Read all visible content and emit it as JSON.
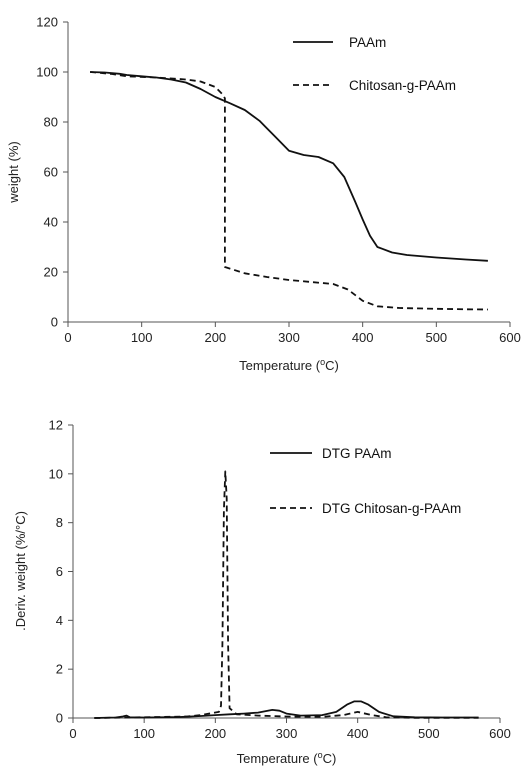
{
  "chart_data": [
    {
      "type": "line",
      "xlabel_main": "Temperature (",
      "xlabel_sup": "o",
      "xlabel_end": "C)",
      "ylabel": "weight (%)",
      "xlim": [
        0,
        600
      ],
      "ylim": [
        0,
        120
      ],
      "x_ticks": [
        "0",
        "100",
        "200",
        "300",
        "400",
        "500",
        "600"
      ],
      "y_ticks": [
        "0",
        "20",
        "40",
        "60",
        "80",
        "100",
        "120"
      ],
      "grid": false,
      "legend_position": "top-right",
      "series": [
        {
          "name": "PAAm",
          "style": "solid",
          "points": [
            [
              30,
              100
            ],
            [
              50,
              99.8
            ],
            [
              70,
              99.3
            ],
            [
              80,
              98.8
            ],
            [
              100,
              98.3
            ],
            [
              120,
              97.8
            ],
            [
              140,
              97.0
            ],
            [
              160,
              95.8
            ],
            [
              180,
              93.2
            ],
            [
              200,
              90.0
            ],
            [
              220,
              87.5
            ],
            [
              240,
              84.8
            ],
            [
              260,
              80.5
            ],
            [
              280,
              74.5
            ],
            [
              300,
              68.5
            ],
            [
              320,
              66.8
            ],
            [
              340,
              66.0
            ],
            [
              360,
              63.5
            ],
            [
              375,
              58.0
            ],
            [
              390,
              48.0
            ],
            [
              400,
              41.0
            ],
            [
              410,
              34.5
            ],
            [
              420,
              30.0
            ],
            [
              440,
              27.8
            ],
            [
              460,
              26.8
            ],
            [
              500,
              25.8
            ],
            [
              540,
              25.0
            ],
            [
              570,
              24.5
            ]
          ]
        },
        {
          "name": "Chitosan-g-PAAm",
          "style": "dashed",
          "points": [
            [
              30,
              100
            ],
            [
              60,
              99.2
            ],
            [
              80,
              98.3
            ],
            [
              120,
              97.8
            ],
            [
              160,
              97.0
            ],
            [
              180,
              96.2
            ],
            [
              200,
              94.0
            ],
            [
              210,
              91.0
            ],
            [
              213,
              89.5
            ],
            [
              213,
              22.0
            ],
            [
              240,
              19.5
            ],
            [
              270,
              18.0
            ],
            [
              300,
              16.8
            ],
            [
              330,
              16.0
            ],
            [
              360,
              15.2
            ],
            [
              380,
              13.0
            ],
            [
              400,
              8.5
            ],
            [
              420,
              6.3
            ],
            [
              450,
              5.6
            ],
            [
              500,
              5.3
            ],
            [
              540,
              5.1
            ],
            [
              570,
              5.0
            ]
          ]
        }
      ]
    },
    {
      "type": "line",
      "xlabel_main": "Temperature (",
      "xlabel_sup": "o",
      "xlabel_end": "C)",
      "ylabel": ".Deriv. weight (%/°C)",
      "xlim": [
        0,
        600
      ],
      "ylim": [
        0,
        12
      ],
      "x_ticks": [
        "0",
        "100",
        "200",
        "300",
        "400",
        "500",
        "600"
      ],
      "y_ticks": [
        "0",
        "2",
        "4",
        "6",
        "8",
        "10",
        "12"
      ],
      "grid": false,
      "legend_position": "top-right",
      "series": [
        {
          "name": "DTG PAAm",
          "style": "solid",
          "points": [
            [
              30,
              0
            ],
            [
              60,
              0.02
            ],
            [
              70,
              0.06
            ],
            [
              75,
              0.1
            ],
            [
              80,
              0.03
            ],
            [
              100,
              0.02
            ],
            [
              150,
              0.04
            ],
            [
              180,
              0.08
            ],
            [
              200,
              0.12
            ],
            [
              220,
              0.15
            ],
            [
              240,
              0.18
            ],
            [
              260,
              0.22
            ],
            [
              280,
              0.33
            ],
            [
              290,
              0.3
            ],
            [
              300,
              0.18
            ],
            [
              320,
              0.1
            ],
            [
              350,
              0.12
            ],
            [
              370,
              0.25
            ],
            [
              385,
              0.55
            ],
            [
              395,
              0.68
            ],
            [
              405,
              0.68
            ],
            [
              415,
              0.55
            ],
            [
              430,
              0.25
            ],
            [
              450,
              0.07
            ],
            [
              480,
              0.03
            ],
            [
              520,
              0.02
            ],
            [
              570,
              0.02
            ]
          ]
        },
        {
          "name": "DTG Chitosan-g-PAAm",
          "style": "dashed",
          "points": [
            [
              30,
              0
            ],
            [
              80,
              0.02
            ],
            [
              120,
              0.04
            ],
            [
              160,
              0.06
            ],
            [
              180,
              0.12
            ],
            [
              195,
              0.2
            ],
            [
              205,
              0.25
            ],
            [
              208,
              0.5
            ],
            [
              210,
              3.0
            ],
            [
              212,
              8.5
            ],
            [
              214,
              10.1
            ],
            [
              216,
              9.0
            ],
            [
              218,
              3.0
            ],
            [
              220,
              0.4
            ],
            [
              230,
              0.15
            ],
            [
              260,
              0.1
            ],
            [
              300,
              0.06
            ],
            [
              350,
              0.05
            ],
            [
              380,
              0.12
            ],
            [
              400,
              0.25
            ],
            [
              420,
              0.12
            ],
            [
              440,
              0.03
            ],
            [
              480,
              0.01
            ],
            [
              570,
              0.01
            ]
          ]
        }
      ]
    }
  ]
}
